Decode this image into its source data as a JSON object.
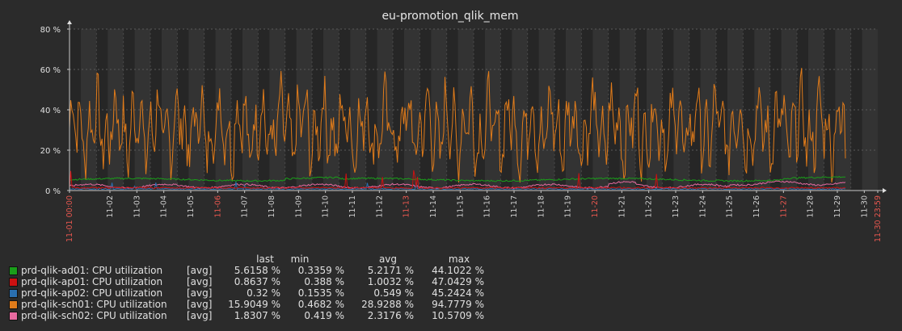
{
  "chart_data": {
    "type": "line",
    "title": "eu-promotion_qlik_mem",
    "ylim": [
      0,
      80
    ],
    "y_ticks": [
      "0 %",
      "20 %",
      "40 %",
      "60 %",
      "80 %"
    ],
    "y_tick_values": [
      0,
      20,
      40,
      60,
      80
    ],
    "x_ticks": [
      "11-01 00:00",
      "11-02",
      "11-03",
      "11-04",
      "11-05",
      "11-06",
      "11-07",
      "11-08",
      "11-09",
      "11-10",
      "11-11",
      "11-12",
      "11-13",
      "11-14",
      "11-15",
      "11-16",
      "11-17",
      "11-18",
      "11-19",
      "11-20",
      "11-21",
      "11-22",
      "11-23",
      "11-24",
      "11-25",
      "11-26",
      "11-27",
      "11-28",
      "11-29",
      "11-30",
      "11-30 23:59"
    ],
    "x_tick_highlight": [
      true,
      false,
      false,
      false,
      false,
      true,
      false,
      false,
      false,
      false,
      false,
      false,
      true,
      false,
      false,
      false,
      false,
      false,
      false,
      true,
      false,
      false,
      false,
      false,
      false,
      false,
      true,
      false,
      false,
      false,
      true
    ],
    "x_range_days": [
      0,
      30
    ],
    "data_end_day": 28.8,
    "grid": true,
    "legend_position": "bottom",
    "legend_headers": {
      "last": "last",
      "min": "min",
      "avg": "avg",
      "max": "max"
    },
    "series": [
      {
        "name": "prd-qlik-ad01: CPU utilization",
        "func": "[avg]",
        "color": "#1a9e1a",
        "last": "5.6158 %",
        "min": "0.3359 %",
        "avg": "5.2171 %",
        "max": "44.1022 %"
      },
      {
        "name": "prd-qlik-ap01: CPU utilization",
        "func": "[avg]",
        "color": "#cc1111",
        "last": "0.8637 %",
        "min": "0.388 %",
        "avg": "1.0032 %",
        "max": "47.0429 %"
      },
      {
        "name": "prd-qlik-ap02: CPU utilization",
        "func": "[avg]",
        "color": "#2a6fb0",
        "last": "0.32 %",
        "min": "0.1535 %",
        "avg": "0.549 %",
        "max": "45.2424 %"
      },
      {
        "name": "prd-qlik-sch01: CPU utilization",
        "func": "[avg]",
        "color": "#e07b1a",
        "last": "15.9049 %",
        "min": "0.4682 %",
        "avg": "28.9288 %",
        "max": "94.7779 %"
      },
      {
        "name": "prd-qlik-sch02: CPU utilization",
        "func": "[avg]",
        "color": "#e86aa0",
        "last": "1.8307 %",
        "min": "0.419 %",
        "avg": "2.3176 %",
        "max": "10.5709 %"
      }
    ]
  }
}
